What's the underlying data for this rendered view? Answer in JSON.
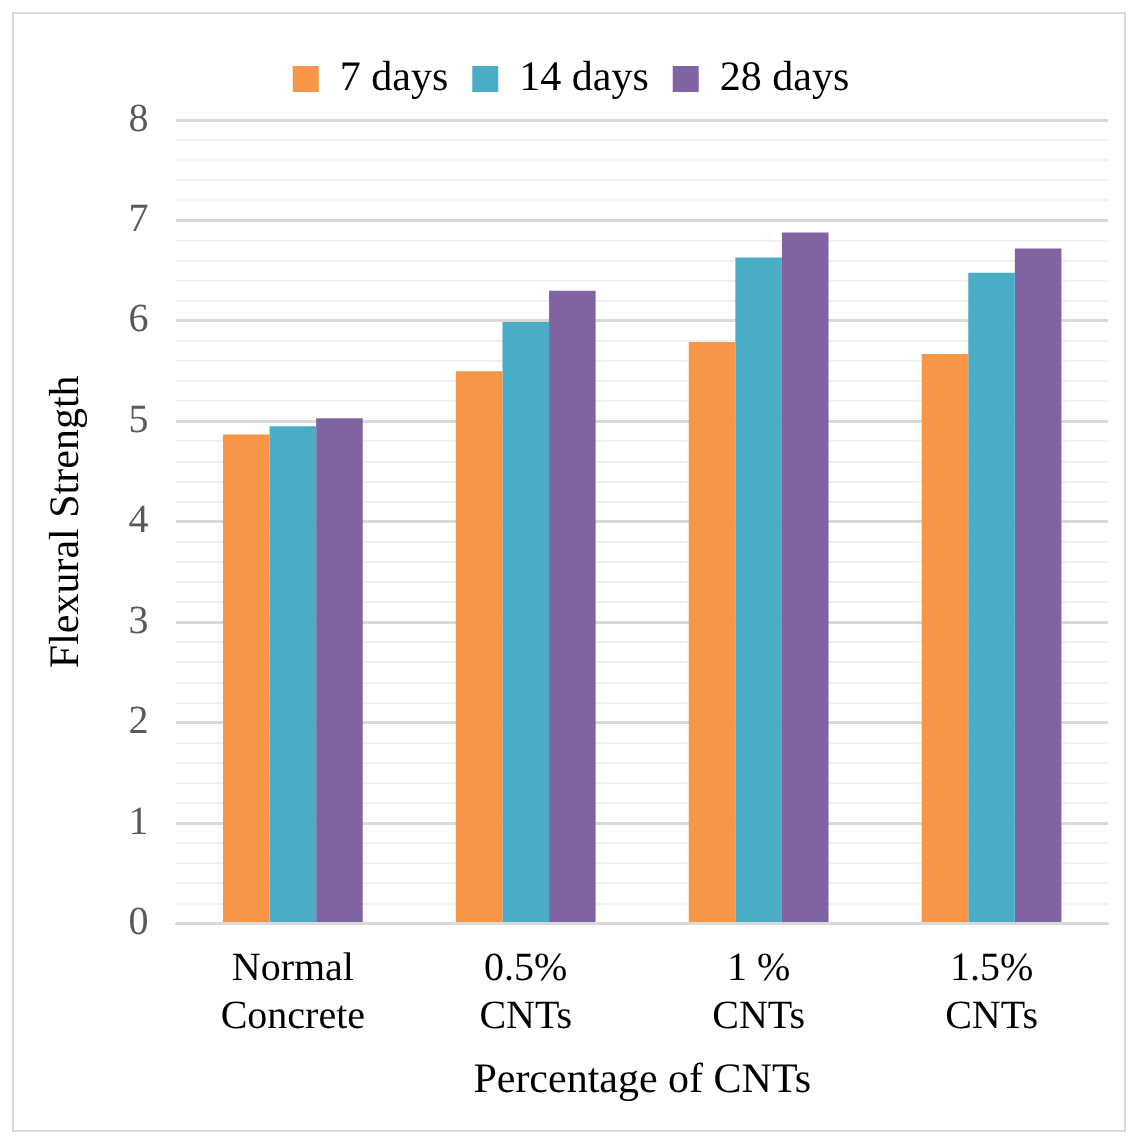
{
  "chart_data": {
    "type": "bar",
    "xlabel": "Percentage of CNTs",
    "ylabel": "Flexural Strength",
    "categories": [
      "Normal Concrete",
      "0.5% CNTs",
      "1 % CNTs",
      "1.5% CNTs"
    ],
    "series": [
      {
        "name": "7 days",
        "color": "#f79646",
        "values": [
          4.87,
          5.5,
          5.79,
          5.67
        ]
      },
      {
        "name": "14 days",
        "color": "#4bacc6",
        "values": [
          4.95,
          5.99,
          6.63,
          6.48
        ]
      },
      {
        "name": "28 days",
        "color": "#8064a2",
        "values": [
          5.03,
          6.3,
          6.88,
          6.72
        ]
      }
    ],
    "ylim": [
      0,
      8
    ],
    "yticks": [
      0,
      {
        "value": 0.2,
        "label": null
      },
      {
        "value": 0.4,
        "label": null
      },
      {
        "value": 0.6,
        "label": null
      },
      {
        "value": 0.8,
        "label": null
      },
      1,
      {
        "value": 1.2,
        "label": null
      },
      {
        "value": 1.4,
        "label": null
      },
      {
        "value": 1.6,
        "label": null
      },
      {
        "value": 1.8,
        "label": null
      },
      2,
      {
        "value": 2.2,
        "label": null
      },
      {
        "value": 2.4,
        "label": null
      },
      {
        "value": 2.6,
        "label": null
      },
      {
        "value": 2.8,
        "label": null
      },
      3,
      {
        "value": 3.2,
        "label": null
      },
      {
        "value": 3.4,
        "label": null
      },
      {
        "value": 3.6,
        "label": null
      },
      {
        "value": 3.8,
        "label": null
      },
      4,
      {
        "value": 4.2,
        "label": null
      },
      {
        "value": 4.4,
        "label": null
      },
      {
        "value": 4.6,
        "label": null
      },
      {
        "value": 4.8,
        "label": null
      },
      5,
      {
        "value": 5.2,
        "label": null
      },
      {
        "value": 5.4,
        "label": null
      },
      {
        "value": 5.6,
        "label": null
      },
      {
        "value": 5.8,
        "label": null
      },
      6,
      {
        "value": 6.2,
        "label": null
      },
      {
        "value": 6.4,
        "label": null
      },
      {
        "value": 6.6,
        "label": null
      },
      {
        "value": 6.8,
        "label": null
      },
      7,
      {
        "value": 7.2,
        "label": null
      },
      {
        "value": 7.4,
        "label": null
      },
      {
        "value": 7.6,
        "label": null
      },
      {
        "value": 7.8,
        "label": null
      },
      8
    ],
    "grid": "y",
    "legend": "top"
  }
}
